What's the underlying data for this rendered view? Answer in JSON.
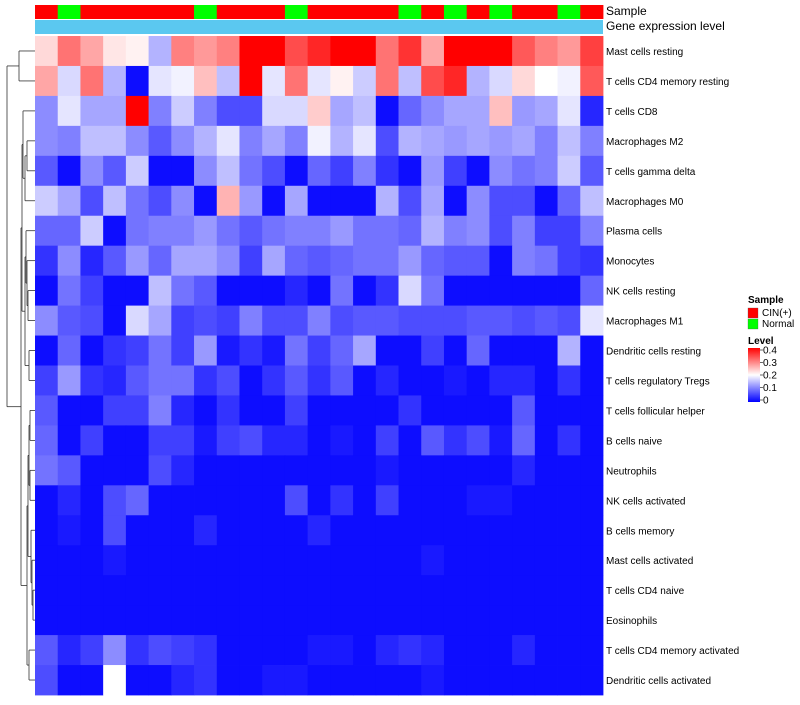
{
  "chart_data": {
    "type": "heatmap",
    "annotation_labels": [
      "Sample",
      "Gene expression level"
    ],
    "samples": [
      "C",
      "N",
      "C",
      "C",
      "C",
      "C",
      "C",
      "N",
      "C",
      "C",
      "C",
      "N",
      "C",
      "C",
      "C",
      "C",
      "N",
      "C",
      "N",
      "C",
      "N",
      "C",
      "C",
      "N",
      "C"
    ],
    "rows": [
      "Mast cells resting",
      "T cells CD4 memory resting",
      "T cells CD8",
      "Macrophages M2",
      "T cells gamma delta",
      "Macrophages M0",
      "Plasma cells",
      "Monocytes",
      "NK cells resting",
      "Macrophages M1",
      "Dendritic cells resting",
      "T cells regulatory  Tregs",
      "T cells follicular helper",
      "B cells naive",
      "Neutrophils",
      "NK cells activated",
      "B cells memory",
      "Mast cells activated",
      "T cells CD4 naive",
      "Eosinophils",
      "T cells CD4 memory activated",
      "Dendritic cells activated"
    ],
    "values": [
      [
        0.23,
        0.31,
        0.27,
        0.22,
        0.21,
        0.14,
        0.3,
        0.28,
        0.3,
        0.4,
        0.4,
        0.34,
        0.37,
        0.4,
        0.4,
        0.31,
        0.36,
        0.27,
        0.4,
        0.4,
        0.4,
        0.33,
        0.3,
        0.28,
        0.35
      ],
      [
        0.27,
        0.17,
        0.31,
        0.14,
        0.01,
        0.18,
        0.19,
        0.25,
        0.15,
        0.4,
        0.18,
        0.31,
        0.18,
        0.21,
        0.16,
        0.31,
        0.15,
        0.34,
        0.37,
        0.14,
        0.17,
        0.23,
        0.2,
        0.19,
        0.33
      ],
      [
        0.11,
        0.18,
        0.13,
        0.13,
        0.4,
        0.1,
        0.16,
        0.1,
        0.06,
        0.06,
        0.17,
        0.17,
        0.24,
        0.13,
        0.15,
        0.01,
        0.08,
        0.11,
        0.13,
        0.13,
        0.25,
        0.12,
        0.13,
        0.18,
        0.03
      ],
      [
        0.11,
        0.1,
        0.15,
        0.15,
        0.11,
        0.07,
        0.11,
        0.14,
        0.18,
        0.1,
        0.13,
        0.1,
        0.19,
        0.14,
        0.18,
        0.06,
        0.14,
        0.13,
        0.12,
        0.13,
        0.12,
        0.13,
        0.1,
        0.15,
        0.1
      ],
      [
        0.07,
        0.01,
        0.11,
        0.07,
        0.16,
        0.01,
        0.01,
        0.11,
        0.15,
        0.09,
        0.06,
        0.01,
        0.08,
        0.05,
        0.1,
        0.04,
        0.01,
        0.12,
        0.05,
        0.01,
        0.11,
        0.09,
        0.1,
        0.16,
        0.07
      ],
      [
        0.16,
        0.13,
        0.06,
        0.15,
        0.09,
        0.06,
        0.11,
        0.01,
        0.26,
        0.12,
        0.01,
        0.13,
        0.01,
        0.01,
        0.01,
        0.14,
        0.06,
        0.13,
        0.01,
        0.11,
        0.06,
        0.06,
        0.01,
        0.08,
        0.15
      ],
      [
        0.08,
        0.08,
        0.16,
        0.01,
        0.09,
        0.1,
        0.1,
        0.12,
        0.09,
        0.07,
        0.09,
        0.1,
        0.1,
        0.12,
        0.09,
        0.09,
        0.08,
        0.14,
        0.1,
        0.11,
        0.06,
        0.1,
        0.05,
        0.05,
        0.1
      ],
      [
        0.04,
        0.11,
        0.03,
        0.07,
        0.12,
        0.08,
        0.13,
        0.13,
        0.11,
        0.05,
        0.13,
        0.08,
        0.07,
        0.08,
        0.09,
        0.09,
        0.12,
        0.08,
        0.07,
        0.07,
        0.01,
        0.1,
        0.09,
        0.05,
        0.04
      ],
      [
        0.01,
        0.09,
        0.05,
        0.01,
        0.01,
        0.15,
        0.09,
        0.07,
        0.01,
        0.01,
        0.01,
        0.03,
        0.01,
        0.09,
        0.01,
        0.04,
        0.17,
        0.09,
        0.01,
        0.01,
        0.01,
        0.01,
        0.01,
        0.01,
        0.08
      ],
      [
        0.11,
        0.07,
        0.06,
        0.01,
        0.17,
        0.13,
        0.05,
        0.06,
        0.05,
        0.1,
        0.06,
        0.06,
        0.1,
        0.06,
        0.07,
        0.07,
        0.06,
        0.06,
        0.06,
        0.07,
        0.07,
        0.06,
        0.07,
        0.06,
        0.18
      ],
      [
        0.01,
        0.08,
        0.01,
        0.04,
        0.05,
        0.09,
        0.05,
        0.12,
        0.02,
        0.04,
        0.02,
        0.09,
        0.05,
        0.08,
        0.13,
        0.01,
        0.01,
        0.05,
        0.01,
        0.08,
        0.01,
        0.01,
        0.01,
        0.14,
        0.01
      ],
      [
        0.05,
        0.12,
        0.04,
        0.03,
        0.07,
        0.09,
        0.09,
        0.04,
        0.06,
        0.01,
        0.04,
        0.07,
        0.04,
        0.07,
        0.01,
        0.03,
        0.01,
        0.01,
        0.02,
        0.01,
        0.03,
        0.03,
        0.01,
        0.04,
        0.01
      ],
      [
        0.07,
        0.01,
        0.01,
        0.05,
        0.05,
        0.1,
        0.03,
        0.01,
        0.04,
        0.01,
        0.01,
        0.05,
        0.01,
        0.01,
        0.01,
        0.01,
        0.04,
        0.01,
        0.01,
        0.01,
        0.01,
        0.07,
        0.01,
        0.01,
        0.01
      ],
      [
        0.08,
        0.01,
        0.05,
        0.01,
        0.01,
        0.05,
        0.05,
        0.02,
        0.05,
        0.06,
        0.03,
        0.03,
        0.01,
        0.02,
        0.01,
        0.05,
        0.01,
        0.07,
        0.04,
        0.06,
        0.02,
        0.08,
        0.01,
        0.04,
        0.01
      ],
      [
        0.09,
        0.07,
        0.01,
        0.01,
        0.01,
        0.06,
        0.03,
        0.01,
        0.01,
        0.01,
        0.01,
        0.01,
        0.01,
        0.01,
        0.01,
        0.02,
        0.01,
        0.01,
        0.01,
        0.01,
        0.01,
        0.03,
        0.01,
        0.01,
        0.01
      ],
      [
        0.01,
        0.03,
        0.01,
        0.06,
        0.08,
        0.01,
        0.01,
        0.01,
        0.01,
        0.01,
        0.01,
        0.06,
        0.01,
        0.04,
        0.01,
        0.05,
        0.01,
        0.01,
        0.01,
        0.02,
        0.02,
        0.01,
        0.01,
        0.01,
        0.01
      ],
      [
        0.01,
        0.02,
        0.01,
        0.06,
        0.01,
        0.01,
        0.01,
        0.03,
        0.01,
        0.01,
        0.01,
        0.01,
        0.03,
        0.01,
        0.01,
        0.01,
        0.01,
        0.01,
        0.01,
        0.01,
        0.01,
        0.01,
        0.01,
        0.01,
        0.01
      ],
      [
        0.01,
        0.01,
        0.01,
        0.02,
        0.01,
        0.01,
        0.01,
        0.01,
        0.01,
        0.01,
        0.01,
        0.01,
        0.01,
        0.01,
        0.01,
        0.01,
        0.01,
        0.02,
        0.01,
        0.01,
        0.01,
        0.01,
        0.01,
        0.01,
        0.01
      ],
      [
        0.01,
        0.01,
        0.01,
        0.01,
        0.01,
        0.01,
        0.01,
        0.01,
        0.01,
        0.01,
        0.01,
        0.01,
        0.01,
        0.01,
        0.01,
        0.01,
        0.01,
        0.01,
        0.01,
        0.01,
        0.01,
        0.01,
        0.01,
        0.01,
        0.01
      ],
      [
        0.01,
        0.01,
        0.01,
        0.01,
        0.01,
        0.01,
        0.01,
        0.01,
        0.01,
        0.01,
        0.01,
        0.01,
        0.01,
        0.01,
        0.01,
        0.01,
        0.01,
        0.01,
        0.01,
        0.01,
        0.01,
        0.01,
        0.01,
        0.01,
        0.01
      ],
      [
        0.07,
        0.03,
        0.05,
        0.11,
        0.04,
        0.06,
        0.05,
        0.04,
        0.01,
        0.01,
        0.01,
        0.01,
        0.02,
        0.02,
        0.01,
        0.03,
        0.04,
        0.03,
        0.01,
        0.01,
        0.01,
        0.03,
        0.01,
        0.01,
        0.01
      ],
      [
        0.06,
        0.01,
        0.01,
        0.2,
        0.01,
        0.01,
        0.03,
        0.04,
        0.01,
        0.01,
        0.02,
        0.02,
        0.01,
        0.01,
        0.01,
        0.01,
        0.01,
        0.02,
        0.01,
        0.01,
        0.01,
        0.01,
        0.01,
        0.01,
        0.01
      ]
    ],
    "legend_sample": {
      "title": "Sample",
      "items": [
        {
          "code": "C",
          "label": "CIN(+)",
          "color": "#ff0000"
        },
        {
          "code": "N",
          "label": "Normal",
          "color": "#00ff00"
        }
      ]
    },
    "legend_level": {
      "title": "Level",
      "ticks": [
        "0.4",
        "0.3",
        "0.2",
        "0.1",
        "0"
      ],
      "range": [
        0,
        0.4
      ],
      "colors": {
        "low": "#0000ff",
        "mid": "#ffffff",
        "high": "#ff0000"
      }
    },
    "expression_bar_color": "#5bc8f0"
  }
}
